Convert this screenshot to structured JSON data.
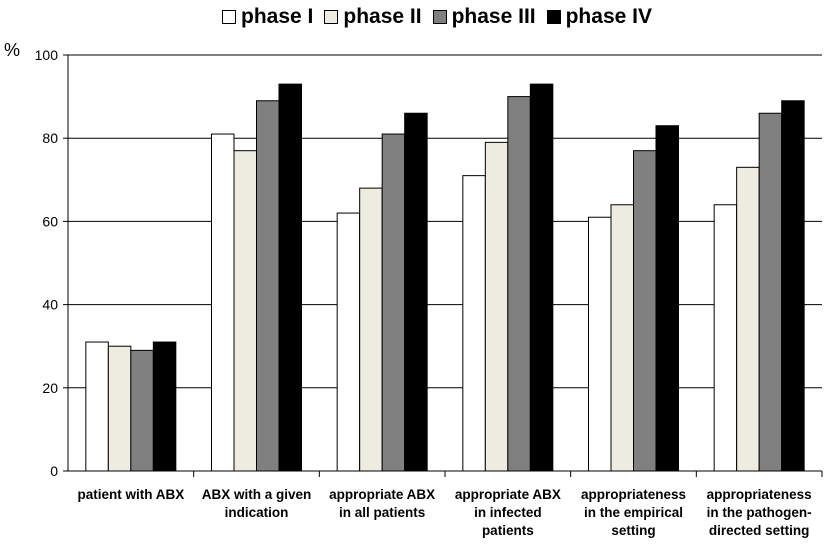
{
  "chart_data": {
    "type": "bar",
    "ylabel": "%",
    "ylim": [
      0,
      100
    ],
    "yticks": [
      0,
      20,
      40,
      60,
      80,
      100
    ],
    "grid": true,
    "legend_position": "top",
    "categories": [
      [
        "patient with ABX"
      ],
      [
        "ABX with a given",
        "indication"
      ],
      [
        "appropriate ABX",
        "in all patients"
      ],
      [
        "appropriate ABX",
        "in infected",
        "patients"
      ],
      [
        "appropriateness",
        "in the empirical",
        "setting"
      ],
      [
        "appropriateness",
        "in the pathogen-",
        "directed setting"
      ]
    ],
    "series": [
      {
        "name": "phase I",
        "color": "#ffffff",
        "values": [
          31,
          81,
          62,
          71,
          61,
          64
        ]
      },
      {
        "name": "phase II",
        "color": "#eeebe0",
        "values": [
          30,
          77,
          68,
          79,
          64,
          73
        ]
      },
      {
        "name": "phase III",
        "color": "#808080",
        "values": [
          29,
          89,
          81,
          90,
          77,
          86
        ]
      },
      {
        "name": "phase IV",
        "color": "#000000",
        "values": [
          31,
          93,
          86,
          93,
          83,
          89
        ]
      }
    ]
  }
}
